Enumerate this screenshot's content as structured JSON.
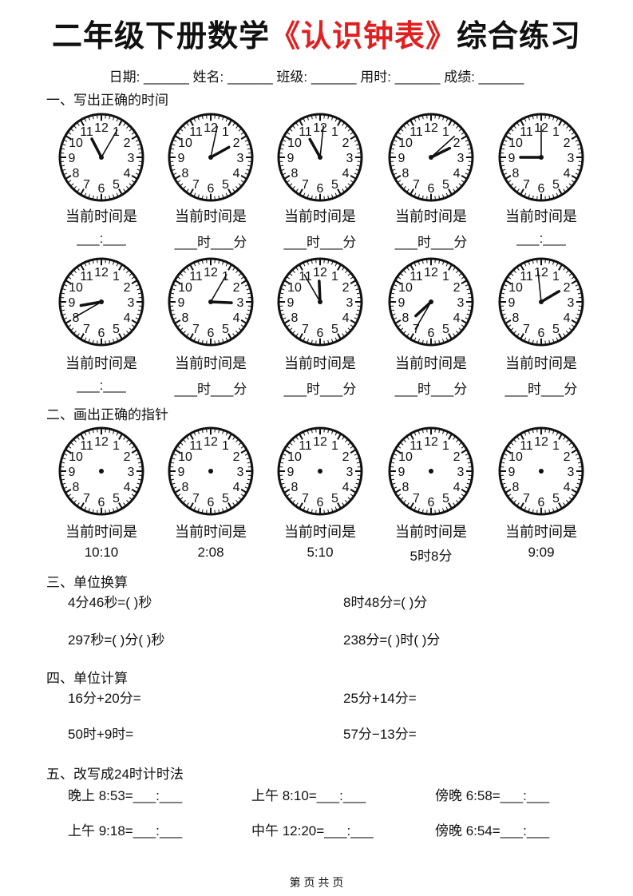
{
  "title": {
    "prefix": "二年级下册数学",
    "highlight": "《认识钟表》",
    "suffix": "综合练习",
    "highlight_color": "#e02020"
  },
  "info_line": "日期: ______  姓名: ______  班级: ______  用时: ______  成绩: ______",
  "sections": {
    "s1": "一、写出正确的时间",
    "s2": "二、画出正确的指针",
    "s3": "三、单位换算",
    "s4": "四、单位计算",
    "s5": "五、改写成24时计时法"
  },
  "clock_label": "当前时间是",
  "row1": {
    "clocks": [
      {
        "h": 11,
        "m": 5
      },
      {
        "h": 2,
        "m": 2
      },
      {
        "h": 11,
        "m": 1
      },
      {
        "h": 2,
        "m": 8
      },
      {
        "h": 9,
        "m": 0
      }
    ],
    "blanks": [
      "___:___",
      "___时___分",
      "___时___分",
      "___时___分",
      "___:___"
    ]
  },
  "row2": {
    "clocks": [
      {
        "h": 8,
        "m": 40
      },
      {
        "h": 3,
        "m": 5
      },
      {
        "h": 11,
        "m": 55
      },
      {
        "h": 7,
        "m": 35
      },
      {
        "h": 1,
        "m": 59
      }
    ],
    "blanks": [
      "___:___",
      "___时___分",
      "___时___分",
      "___时___分",
      "___时___分"
    ]
  },
  "row3": {
    "times": [
      "10:10",
      "2:08",
      "5:10",
      "5时8分",
      "9:09"
    ]
  },
  "conversion": [
    "4分46秒=(        )秒",
    "8时48分=(        )分",
    "297秒=(        )分(        )秒",
    "238分=(        )时(        )分"
  ],
  "calculation": [
    "16分+20分=",
    "25分+14分=",
    "50时+9时=",
    "57分−13分="
  ],
  "to24h": [
    "晚上 8:53=___:___",
    "上午 8:10=___:___",
    "傍晚 6:58=___:___",
    "上午 9:18=___:___",
    "中午 12:20=___:___",
    "傍晚 6:54=___:___"
  ],
  "footer": "第  页  共  页"
}
